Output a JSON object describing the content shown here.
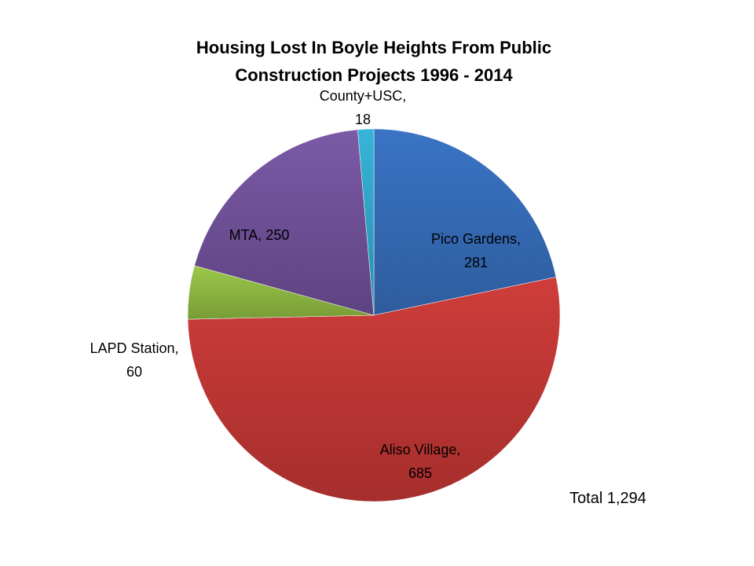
{
  "chart_data": {
    "type": "pie",
    "title_lines": [
      "Housing Lost In Boyle Heights From Public",
      "Construction Projects 1996 - 2014"
    ],
    "slices": [
      {
        "category": "Pico Gardens",
        "value": 281,
        "label_lines": [
          "Pico Gardens,",
          "281"
        ],
        "color": "#3a74c4",
        "color_dark": "#2e5c9e"
      },
      {
        "category": "Aliso Village",
        "value": 685,
        "label_lines": [
          "Aliso Village,",
          "685"
        ],
        "color": "#cf3d3a",
        "color_dark": "#a52e2c"
      },
      {
        "category": "LAPD Station",
        "value": 60,
        "label_lines": [
          "LAPD Station,",
          "60"
        ],
        "color": "#9bc84a",
        "color_dark": "#789c37"
      },
      {
        "category": "MTA",
        "value": 250,
        "label_lines": [
          "MTA, 250"
        ],
        "color": "#7b5aa6",
        "color_dark": "#5e4382"
      },
      {
        "category": "County+USC",
        "value": 18,
        "label_lines": [
          "County+USC,",
          "18"
        ],
        "color": "#36b4d8",
        "color_dark": "#2a8eab"
      }
    ],
    "annotation": "Total 1,294",
    "legend": "none"
  }
}
